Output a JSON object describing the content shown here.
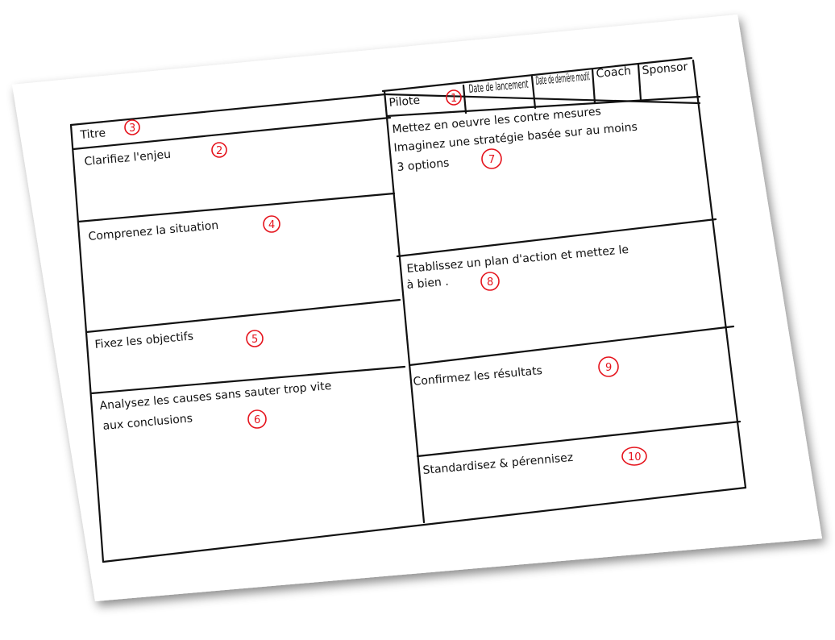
{
  "sheet": {
    "colors": {
      "ink": "#111111",
      "numbering": "#e5131c",
      "paper": "#ffffff"
    },
    "header_cells": [
      {
        "label": "Pilote",
        "number": "1"
      },
      {
        "label": "Date de lancement"
      },
      {
        "label": "Date de dernière modif."
      },
      {
        "label": "Coach"
      },
      {
        "label": "Sponsor"
      }
    ],
    "sections": [
      {
        "label": "Titre",
        "number": "3"
      },
      {
        "label": "Clarifiez l'enjeu",
        "number": "2"
      },
      {
        "label": "Comprenez la situation",
        "number": "4"
      },
      {
        "label": "Fixez les objectifs",
        "number": "5"
      },
      {
        "label_lines": [
          "Analysez les causes sans sauter trop vite",
          "aux conclusions"
        ],
        "number": "6"
      },
      {
        "label_lines": [
          "Mettez en oeuvre les contre mesures",
          "Imaginez une stratégie basée sur au moins",
          "3 options"
        ],
        "number": "7"
      },
      {
        "label_lines": [
          "Etablissez un plan d'action et mettez le",
          "à bien ."
        ],
        "number": "8"
      },
      {
        "label": "Confirmez les résultats",
        "number": "9"
      },
      {
        "label": "Standardisez & pérennisez",
        "number": "10"
      }
    ]
  }
}
